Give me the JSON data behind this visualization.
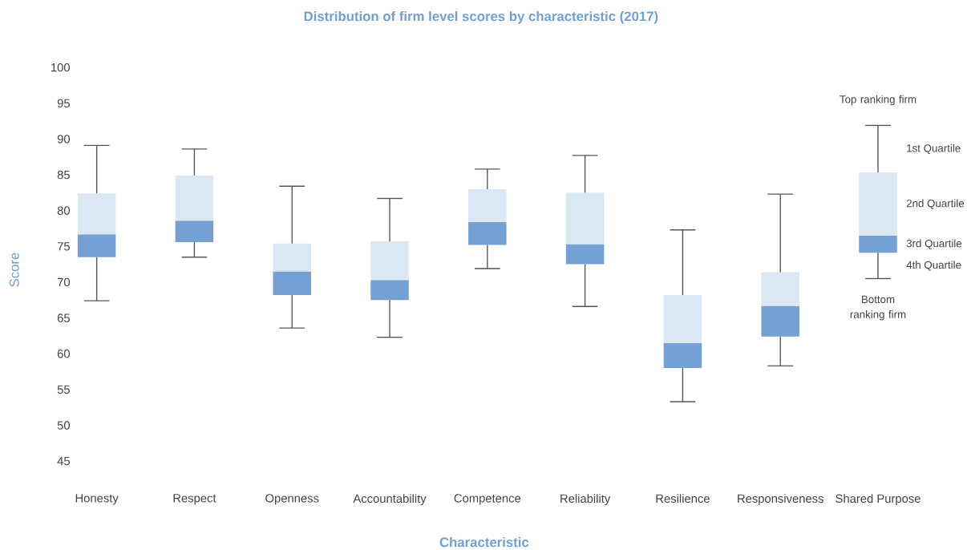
{
  "chart_data": {
    "type": "box",
    "title": "Distribution of firm level scores by characteristic (2017)",
    "xlabel": "Characteristic",
    "ylabel": "Score",
    "categories": [
      "Honesty",
      "Respect",
      "Openness",
      "Accountability",
      "Competence",
      "Reliability",
      "Resilience",
      "Responsiveness",
      "Shared Purpose"
    ],
    "boxes": [
      {
        "low": 67.4,
        "q1": 73.5,
        "median": 76.7,
        "q3": 82.4,
        "high": 89.1
      },
      {
        "low": 73.5,
        "q1": 75.6,
        "median": 78.6,
        "q3": 84.9,
        "high": 88.6
      },
      {
        "low": 63.6,
        "q1": 68.2,
        "median": 71.5,
        "q3": 75.4,
        "high": 83.4
      },
      {
        "low": 62.3,
        "q1": 67.5,
        "median": 70.3,
        "q3": 75.7,
        "high": 81.7
      },
      {
        "low": 71.9,
        "q1": 75.2,
        "median": 78.4,
        "q3": 83.0,
        "high": 85.8
      },
      {
        "low": 66.6,
        "q1": 72.5,
        "median": 75.3,
        "q3": 82.5,
        "high": 87.7
      },
      {
        "low": 53.3,
        "q1": 58.0,
        "median": 61.5,
        "q3": 68.2,
        "high": 77.3
      },
      {
        "low": 58.3,
        "q1": 62.4,
        "median": 66.7,
        "q3": 71.4,
        "high": 82.3
      },
      {
        "low": 70.5,
        "q1": 74.1,
        "median": 76.5,
        "q3": 85.3,
        "high": 91.9
      }
    ],
    "color": "#74a0d4",
    "ylim": [
      45,
      100
    ],
    "yticks": [
      45,
      50,
      55,
      60,
      65,
      70,
      75,
      80,
      85,
      90,
      95,
      100
    ],
    "grid": false,
    "annotations": [
      "Top ranking firm",
      "1st Quartile",
      "2nd Quartile",
      "3rd Quartile",
      "4th Quartile",
      "Bottom ranking firm"
    ]
  }
}
